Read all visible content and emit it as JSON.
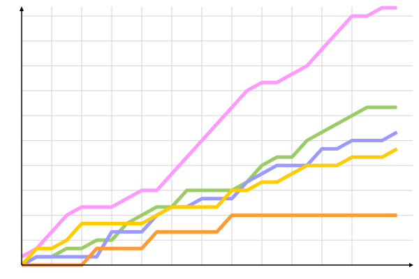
{
  "chart_data": {
    "type": "line",
    "title": "",
    "xlabel": "",
    "ylabel": "",
    "x": [
      0,
      1,
      2,
      3,
      4,
      5,
      6,
      7,
      8,
      9,
      10,
      11,
      12,
      13,
      14,
      15,
      16,
      17,
      18,
      19,
      20,
      21,
      22,
      23,
      24,
      25
    ],
    "xlim": [
      0,
      26
    ],
    "ylim": [
      0,
      31
    ],
    "grid": true,
    "legend": "none",
    "series": [
      {
        "color": "#ff99ff",
        "values": [
          1,
          2,
          4,
          6,
          7,
          7,
          7,
          8,
          9,
          9,
          11,
          13,
          15,
          17,
          19,
          21,
          22,
          22,
          23,
          24,
          26,
          28,
          30,
          30,
          31,
          31
        ]
      },
      {
        "color": "#99cc66",
        "values": [
          0,
          1,
          1,
          2,
          2,
          3,
          3,
          5,
          6,
          7,
          7,
          9,
          9,
          9,
          9,
          10,
          12,
          13,
          13,
          15,
          16,
          17,
          18,
          19,
          19,
          19
        ]
      },
      {
        "color": "#9999ff",
        "values": [
          0,
          1,
          1,
          1,
          1,
          1,
          4,
          4,
          4,
          6,
          7,
          7,
          8,
          8,
          8,
          10,
          11,
          12,
          12,
          12,
          14,
          14,
          15,
          15,
          15,
          16
        ]
      },
      {
        "color": "#ffcc00",
        "values": [
          0,
          2,
          2,
          3,
          5,
          5,
          5,
          5,
          5,
          6,
          7,
          7,
          7,
          7,
          9,
          9,
          10,
          10,
          11,
          12,
          12,
          12,
          13,
          13,
          13,
          14
        ]
      },
      {
        "color": "#ff9933",
        "values": [
          0,
          0,
          0,
          0,
          0,
          2,
          2,
          2,
          2,
          4,
          4,
          4,
          4,
          4,
          6,
          6,
          6,
          6,
          6,
          6,
          6,
          6,
          6,
          6,
          6,
          6
        ]
      }
    ]
  }
}
